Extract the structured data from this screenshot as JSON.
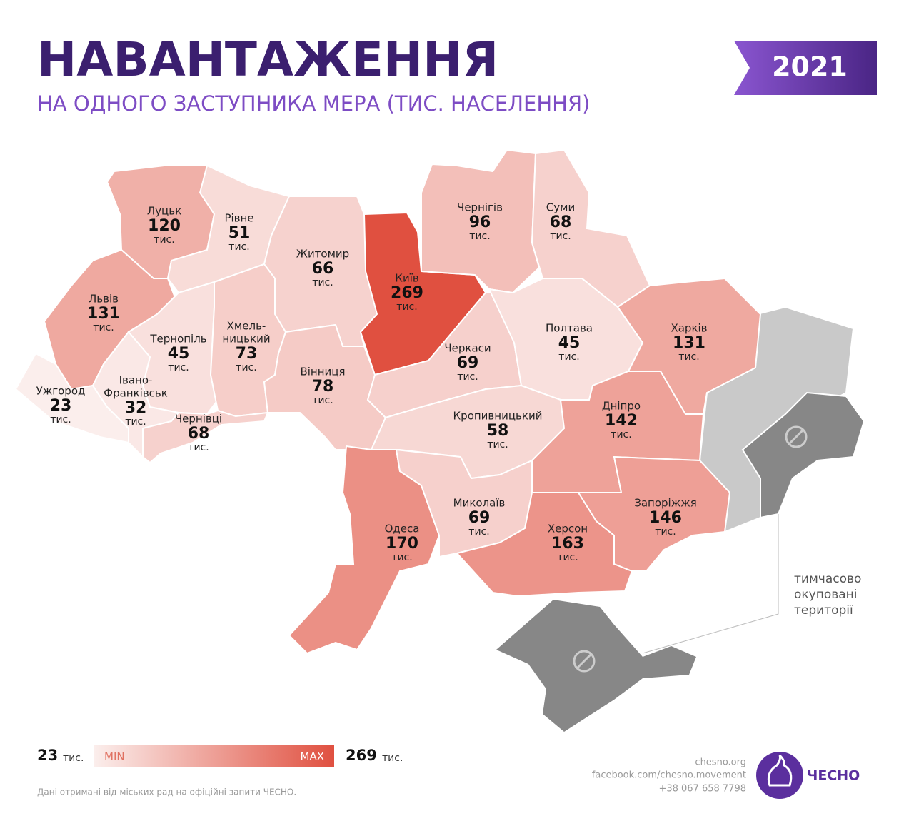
{
  "header": {
    "title": "НАВАНТАЖЕННЯ",
    "subtitle": "НА ОДНОГО ЗАСТУПНИКА МЕРА (ТИС. НАСЕЛЕННЯ)",
    "year": "2021"
  },
  "unit": "тис.",
  "regions": [
    {
      "name_lines": [
        "Луцьк"
      ],
      "value": 120
    },
    {
      "name_lines": [
        "Рівне"
      ],
      "value": 51
    },
    {
      "name_lines": [
        "Житомир"
      ],
      "value": 66
    },
    {
      "name_lines": [
        "Київ"
      ],
      "value": 269
    },
    {
      "name_lines": [
        "Чернігів"
      ],
      "value": 96
    },
    {
      "name_lines": [
        "Суми"
      ],
      "value": 68
    },
    {
      "name_lines": [
        "Львів"
      ],
      "value": 131
    },
    {
      "name_lines": [
        "Тернопіль"
      ],
      "value": 45
    },
    {
      "name_lines": [
        "Хмель-",
        "ницький"
      ],
      "value": 73
    },
    {
      "name_lines": [
        "Вінниця"
      ],
      "value": 78
    },
    {
      "name_lines": [
        "Черкаси"
      ],
      "value": 69
    },
    {
      "name_lines": [
        "Полтава"
      ],
      "value": 45
    },
    {
      "name_lines": [
        "Харків"
      ],
      "value": 131
    },
    {
      "name_lines": [
        "Ужгород"
      ],
      "value": 23
    },
    {
      "name_lines": [
        "Івано-",
        "Франківськ"
      ],
      "value": 32
    },
    {
      "name_lines": [
        "Чернівці"
      ],
      "value": 68
    },
    {
      "name_lines": [
        "Кропивницький"
      ],
      "value": 58
    },
    {
      "name_lines": [
        "Дніпро"
      ],
      "value": 142
    },
    {
      "name_lines": [
        "Одеса"
      ],
      "value": 170
    },
    {
      "name_lines": [
        "Миколаїв"
      ],
      "value": 69
    },
    {
      "name_lines": [
        "Херсон"
      ],
      "value": 163
    },
    {
      "name_lines": [
        "Запоріжжя"
      ],
      "value": 146
    }
  ],
  "occupied_label": [
    "тимчасово",
    "окуповані",
    "території"
  ],
  "legend": {
    "min_value": 23,
    "max_value": 269,
    "min_label": "MIN",
    "max_label": "MAX"
  },
  "footer": {
    "source": "Дані отримані від міських рад на офіційні запити ЧЕСНО.",
    "contacts": [
      "chesno.org",
      "facebook.com/chesno.movement",
      "+38 067 658 7798"
    ],
    "logo": "ЧЕСНО"
  }
}
